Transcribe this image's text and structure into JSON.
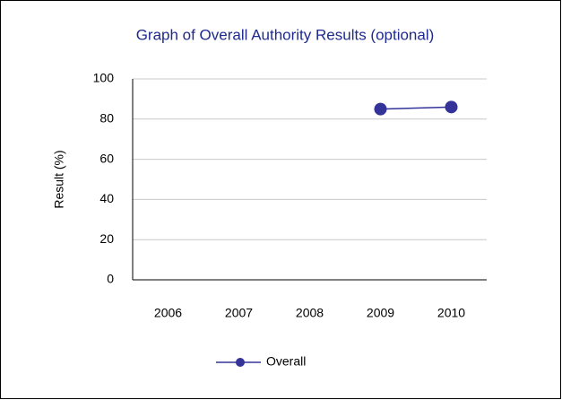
{
  "chart_data": {
    "type": "line",
    "title": "Graph of Overall Authority Results (optional)",
    "y_label": "Result (%)",
    "categories": [
      "2006",
      "2007",
      "2008",
      "2009",
      "2010"
    ],
    "series": [
      {
        "name": "Overall",
        "color": "#333399",
        "values": [
          null,
          null,
          null,
          85,
          86
        ]
      }
    ],
    "ylim": [
      0,
      100
    ],
    "yticks": [
      0,
      20,
      40,
      60,
      80,
      100
    ],
    "grid": true,
    "legend": "bottom"
  }
}
